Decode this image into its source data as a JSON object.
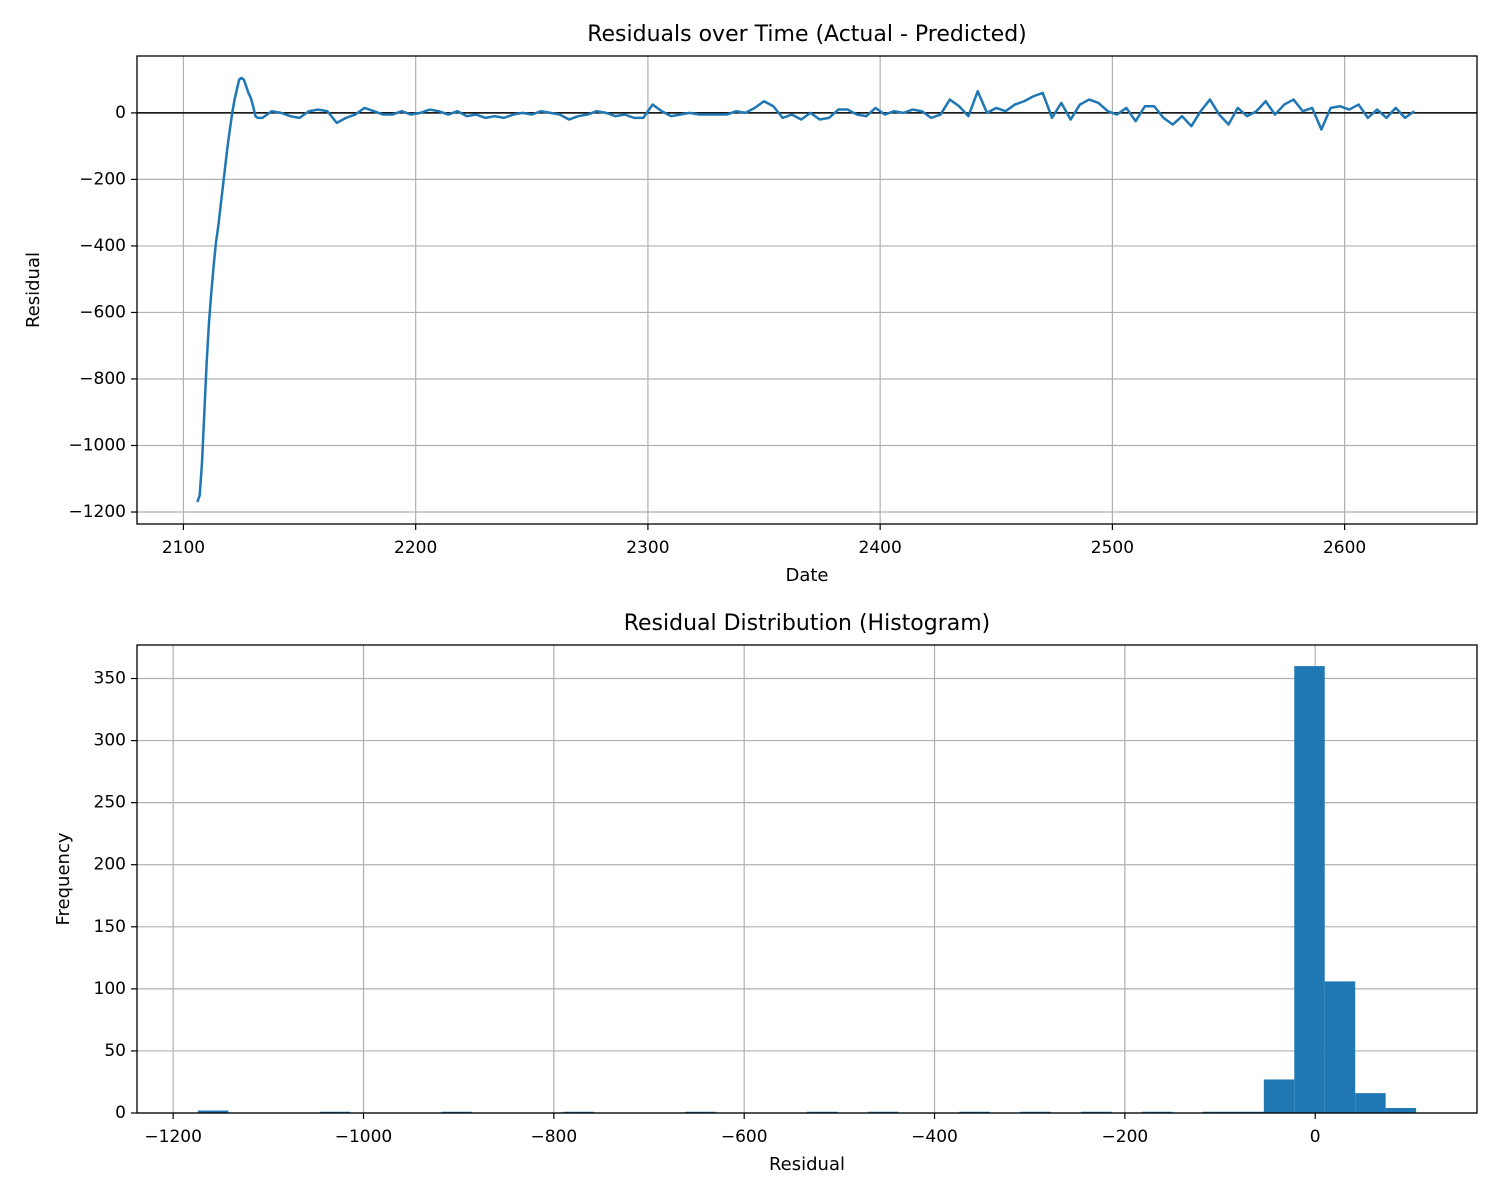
{
  "chart_data": [
    {
      "type": "line",
      "title": "Residuals over Time (Actual - Predicted)",
      "xlabel": "Date",
      "ylabel": "Residual",
      "series": [
        {
          "name": "Residual",
          "color": "#1f77b4",
          "x": [
            2106,
            2107,
            2108,
            2109,
            2110,
            2111,
            2112,
            2113,
            2114,
            2115,
            2116,
            2117,
            2118,
            2119,
            2120,
            2121,
            2122,
            2123,
            2124,
            2125,
            2126,
            2127,
            2128,
            2129,
            2130,
            2131,
            2132,
            2134,
            2138,
            2142,
            2146,
            2150,
            2154,
            2158,
            2162,
            2166,
            2170,
            2174,
            2178,
            2182,
            2186,
            2190,
            2194,
            2198,
            2202,
            2206,
            2210,
            2214,
            2218,
            2222,
            2226,
            2230,
            2234,
            2238,
            2242,
            2246,
            2250,
            2254,
            2258,
            2262,
            2266,
            2270,
            2274,
            2278,
            2282,
            2286,
            2290,
            2294,
            2298,
            2302,
            2306,
            2310,
            2314,
            2318,
            2322,
            2326,
            2330,
            2334,
            2338,
            2342,
            2346,
            2350,
            2354,
            2358,
            2362,
            2366,
            2370,
            2374,
            2378,
            2382,
            2386,
            2390,
            2394,
            2398,
            2402,
            2406,
            2410,
            2414,
            2418,
            2422,
            2426,
            2430,
            2434,
            2438,
            2442,
            2446,
            2450,
            2454,
            2458,
            2462,
            2466,
            2470,
            2474,
            2478,
            2482,
            2486,
            2490,
            2494,
            2498,
            2502,
            2506,
            2510,
            2514,
            2518,
            2522,
            2526,
            2530,
            2534,
            2538,
            2542,
            2546,
            2550,
            2554,
            2558,
            2562,
            2566,
            2570,
            2574,
            2578,
            2582,
            2586,
            2590,
            2594,
            2598,
            2602,
            2606,
            2610,
            2614,
            2618,
            2622,
            2626,
            2630
          ],
          "values": [
            -1170,
            -1150,
            -1050,
            -900,
            -750,
            -630,
            -540,
            -460,
            -390,
            -340,
            -280,
            -220,
            -160,
            -100,
            -50,
            0,
            40,
            70,
            100,
            105,
            100,
            80,
            60,
            45,
            20,
            -10,
            -15,
            -15,
            5,
            0,
            -10,
            -15,
            5,
            10,
            5,
            -30,
            -15,
            -5,
            15,
            5,
            -5,
            -5,
            5,
            -5,
            0,
            10,
            5,
            -5,
            5,
            -10,
            -5,
            -15,
            -10,
            -15,
            -5,
            0,
            -5,
            5,
            0,
            -5,
            -20,
            -10,
            -5,
            5,
            0,
            -10,
            -5,
            -15,
            -15,
            25,
            5,
            -10,
            -5,
            0,
            -5,
            -5,
            -5,
            -5,
            5,
            0,
            15,
            35,
            20,
            -15,
            -5,
            -20,
            0,
            -20,
            -15,
            10,
            10,
            -5,
            -10,
            15,
            -5,
            5,
            0,
            10,
            5,
            -15,
            -5,
            40,
            20,
            -10,
            65,
            0,
            15,
            5,
            25,
            35,
            50,
            60,
            -15,
            30,
            -20,
            25,
            40,
            30,
            5,
            -5,
            15,
            -25,
            20,
            20,
            -15,
            -35,
            -10,
            -40,
            5,
            40,
            -5,
            -35,
            15,
            -10,
            5,
            35,
            -5,
            25,
            40,
            5,
            15,
            -50,
            15,
            20,
            10,
            25,
            -15,
            10,
            -15,
            15,
            -15,
            5
          ]
        }
      ],
      "reference_line": 0,
      "xlim": [
        2080,
        2657
      ],
      "xticks": [
        2100,
        2200,
        2300,
        2400,
        2500,
        2600
      ],
      "ylim": [
        -1236,
        171
      ],
      "yticks": [
        {
          "value": -1200,
          "label": "−1200"
        },
        {
          "value": -1000,
          "label": "−1000"
        },
        {
          "value": -800,
          "label": "−800"
        },
        {
          "value": -600,
          "label": "−600"
        },
        {
          "value": -400,
          "label": "−400"
        },
        {
          "value": -200,
          "label": "−200"
        },
        0
      ],
      "grid": true
    },
    {
      "type": "histogram",
      "title": "Residual Distribution (Histogram)",
      "xlabel": "Residual",
      "ylabel": "Frequency",
      "color": "#1f77b4",
      "bins": [
        -1174,
        -1142,
        -1110,
        -1078,
        -1046,
        -1014,
        -982,
        -950,
        -918,
        -886,
        -854,
        -822,
        -790,
        -758,
        -726,
        -694,
        -662,
        -630,
        -598,
        -566,
        -534,
        -502,
        -470,
        -438,
        -406,
        -374,
        -342,
        -310,
        -278,
        -246,
        -214,
        -182,
        -150,
        -118,
        -86,
        -54,
        -22,
        10,
        42,
        74,
        106
      ],
      "values": [
        2,
        0,
        0,
        0,
        1,
        0,
        0,
        0,
        1,
        0,
        0,
        0,
        1,
        0,
        0,
        0,
        1,
        0,
        0,
        0,
        1,
        0,
        1,
        0,
        0,
        1,
        0,
        1,
        0,
        1,
        0,
        1,
        0,
        1,
        1,
        27,
        360,
        106,
        16,
        4
      ],
      "xlim": [
        -1238,
        170
      ],
      "xticks": [
        {
          "value": -1200,
          "label": "−1200"
        },
        {
          "value": -1000,
          "label": "−1000"
        },
        {
          "value": -800,
          "label": "−800"
        },
        {
          "value": -600,
          "label": "−600"
        },
        {
          "value": -400,
          "label": "−400"
        },
        {
          "value": -200,
          "label": "−200"
        },
        0
      ],
      "ylim": [
        0,
        377
      ],
      "yticks": [
        0,
        50,
        100,
        150,
        200,
        250,
        300,
        350
      ],
      "grid": true
    }
  ]
}
